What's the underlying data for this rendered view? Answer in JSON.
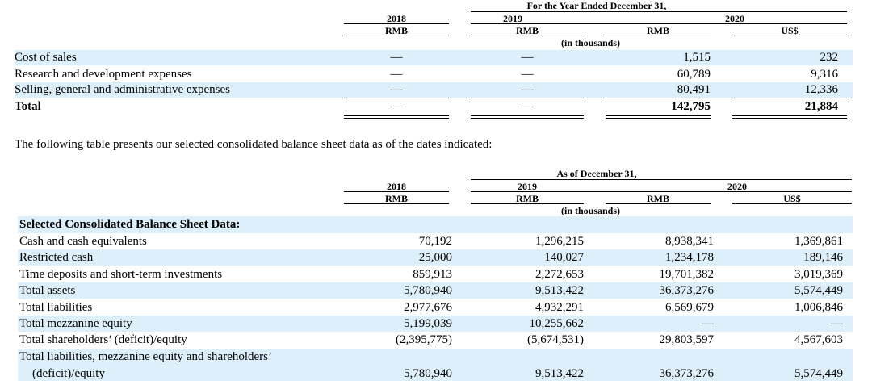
{
  "table1": {
    "period_caption": "For the Year Ended December 31,",
    "years": [
      "2018",
      "2019",
      "2020"
    ],
    "currency_rmb": "RMB",
    "currency_usd": "US$",
    "unit": "(in thousands)",
    "rows": [
      {
        "label": "Cost of sales",
        "c2018": "—",
        "c2019": "—",
        "c2020_rmb": "1,515",
        "c2020_usd": "232"
      },
      {
        "label": "Research and development expenses",
        "c2018": "—",
        "c2019": "—",
        "c2020_rmb": "60,789",
        "c2020_usd": "9,316"
      },
      {
        "label": "Selling, general and administrative expenses",
        "c2018": "—",
        "c2019": "—",
        "c2020_rmb": "80,491",
        "c2020_usd": "12,336"
      },
      {
        "label": "Total",
        "c2018": "—",
        "c2019": "—",
        "c2020_rmb": "142,795",
        "c2020_usd": "21,884"
      }
    ]
  },
  "paragraph": "The following table presents our selected consolidated balance sheet data as of the dates indicated:",
  "table2": {
    "period_caption": "As of December 31,",
    "years": [
      "2018",
      "2019",
      "2020"
    ],
    "currency_rmb": "RMB",
    "currency_usd": "US$",
    "unit": "(in thousands)",
    "section_title": "Selected Consolidated Balance Sheet Data:",
    "rows": [
      {
        "label": "Cash and cash equivalents",
        "c2018": "70,192",
        "c2019": "1,296,215",
        "c2020_rmb": "8,938,341",
        "c2020_usd": "1,369,861"
      },
      {
        "label": "Restricted cash",
        "c2018": "25,000",
        "c2019": "140,027",
        "c2020_rmb": "1,234,178",
        "c2020_usd": "189,146"
      },
      {
        "label": "Time deposits and short-term investments",
        "c2018": "859,913",
        "c2019": "2,272,653",
        "c2020_rmb": "19,701,382",
        "c2020_usd": "3,019,369"
      },
      {
        "label": "Total assets",
        "c2018": "5,780,940",
        "c2019": "9,513,422",
        "c2020_rmb": "36,373,276",
        "c2020_usd": "5,574,449"
      },
      {
        "label": "Total liabilities",
        "c2018": "2,977,676",
        "c2019": "4,932,291",
        "c2020_rmb": "6,569,679",
        "c2020_usd": "1,006,846"
      },
      {
        "label": "Total mezzanine equity",
        "c2018": "5,199,039",
        "c2019": "10,255,662",
        "c2020_rmb": "—",
        "c2020_usd": "—"
      },
      {
        "label": "Total shareholders’ (deficit)/equity",
        "c2018": "(2,395,775)",
        "c2019": "(5,674,531)",
        "c2020_rmb": "29,803,597",
        "c2020_usd": "4,567,603"
      }
    ],
    "last_row": {
      "label_line1": "Total liabilities, mezzanine equity and shareholders’",
      "label_line2": "(deficit)/equity",
      "c2018": "5,780,940",
      "c2019": "9,513,422",
      "c2020_rmb": "36,373,276",
      "c2020_usd": "5,574,449"
    }
  }
}
